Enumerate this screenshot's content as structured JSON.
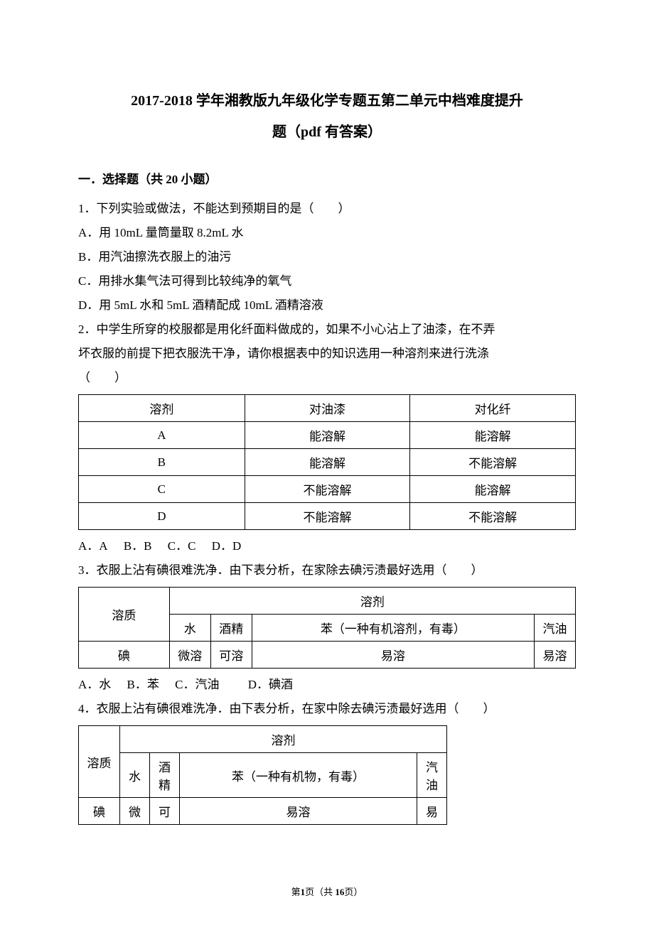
{
  "title_line1": "2017-2018 学年湘教版九年级化学专题五第二单元中档难度提升",
  "title_line2": "题（pdf 有答案）",
  "section1_heading": "一．选择题（共 20 小题）",
  "q1": {
    "stem": "1．下列实验或做法，不能达到预期目的是（　　）",
    "A": "A．用 10mL 量筒量取 8.2mL 水",
    "B": "B．用汽油擦洗衣服上的油污",
    "C": "C．用排水集气法可得到比较纯净的氧气",
    "D": "D．用 5mL 水和 5mL 酒精配成 10mL 酒精溶液"
  },
  "q2": {
    "stem1": "2．中学生所穿的校服都是用化纤面料做成的，如果不小心沾上了油漆，在不弄",
    "stem2": "坏衣服的前提下把衣服洗干净，请你根据表中的知识选用一种溶剂来进行洗涤",
    "stem3": "（　　）",
    "table": {
      "col_widths": [
        "234px",
        "233px",
        "233px"
      ],
      "headers": [
        "溶剂",
        "对油漆",
        "对化纤"
      ],
      "rows": [
        [
          "A",
          "能溶解",
          "能溶解"
        ],
        [
          "B",
          "能溶解",
          "不能溶解"
        ],
        [
          "C",
          "不能溶解",
          "能溶解"
        ],
        [
          "D",
          "不能溶解",
          "不能溶解"
        ]
      ]
    },
    "options": {
      "A": "A．A",
      "B": "B．B",
      "C": "C．C",
      "D": "D．D"
    }
  },
  "q3": {
    "stem": "3．衣服上沾有碘很难洗净．由下表分析，在家除去碘污渍最好选用（　　）",
    "table": {
      "col_widths": [
        "128px",
        "58px",
        "58px",
        "398px",
        "58px"
      ],
      "row0": [
        "溶质",
        "溶剂"
      ],
      "row1": [
        "水",
        "酒精",
        "苯（一种有机溶剂，有毒）",
        "汽油"
      ],
      "row2": [
        "碘",
        "微溶",
        "可溶",
        "易溶",
        "易溶"
      ]
    },
    "options": {
      "A": "A．水",
      "B": "B．苯",
      "C": "C．汽油",
      "D": "D．碘酒"
    }
  },
  "q4": {
    "stem": "4．衣服上沾有碘很难洗净．由下表分析，在家中除去碘污渍最好选用（　　）",
    "table": {
      "col_widths": [
        "58px",
        "42px",
        "42px",
        "334px",
        "42px"
      ],
      "row0": [
        "溶质",
        "溶剂"
      ],
      "row1_c1": "水",
      "row1_c2a": "酒",
      "row1_c2b": "精",
      "row1_c3": "苯（一种有机物，有毒）",
      "row1_c4a": "汽",
      "row1_c4b": "油",
      "row2_c0": "碘",
      "row2_c1": "微",
      "row2_c2": "可",
      "row2_c3": "易溶",
      "row2_c4": "易"
    }
  },
  "footer": {
    "prefix": "第",
    "page": "1",
    "mid": "页（共 ",
    "total": "16",
    "suffix": "页）"
  }
}
